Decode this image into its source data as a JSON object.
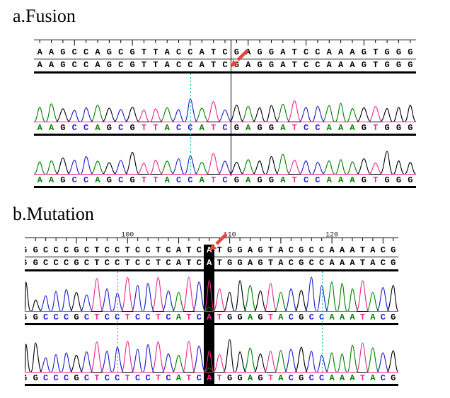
{
  "figure": {
    "panel_a_title": "a.Fusion",
    "panel_b_title": "b.Mutation"
  },
  "colors": {
    "bases": {
      "A": "#008000",
      "C": "#1c1ccd",
      "G": "#000000",
      "T": "#ed2891"
    },
    "dotted_line": "#00b2b2",
    "junction_line": "#000000",
    "highlight_bg": "#000000",
    "highlight_text": "#ffffff",
    "highlight_trace_letter": "#ed2891",
    "arrow": "#e8453c",
    "ruler": "#000000",
    "text_row_letters": "#000000"
  },
  "panel_a": {
    "title": "a.Fusion",
    "sequence": "AAGCCAGCGTTACCATCGAGGATCCAAAGTGGG",
    "junction_index": 17,
    "dotted_index": 13,
    "text_rows": 2,
    "traces": [
      {
        "heights": [
          0.62,
          0.78,
          0.55,
          0.48,
          0.6,
          0.72,
          0.58,
          0.52,
          0.63,
          0.5,
          0.55,
          0.6,
          0.52,
          1.0,
          0.58,
          0.88,
          0.5,
          0.72,
          0.66,
          0.6,
          0.7,
          0.76,
          0.92,
          0.62,
          0.66,
          0.7,
          0.8,
          0.56,
          0.6,
          0.66,
          0.56,
          0.62,
          0.72
        ]
      },
      {
        "heights": [
          0.52,
          0.56,
          0.7,
          0.6,
          0.76,
          0.55,
          0.48,
          0.58,
          0.95,
          0.45,
          0.6,
          0.55,
          0.66,
          0.8,
          0.5,
          0.9,
          0.55,
          0.5,
          0.62,
          0.56,
          0.76,
          0.86,
          0.6,
          0.56,
          0.5,
          0.56,
          0.62,
          0.52,
          0.66,
          0.46,
          1.0,
          0.56,
          0.5
        ]
      }
    ]
  },
  "panel_b": {
    "title": "b.Mutation",
    "clipped_first_char": "G",
    "sequence": "GCCCGCTCCTCCTCATCATGGAGTACGCCAAATACG",
    "highlight_index": 17,
    "highlight_base": "A",
    "dotted_indices": [
      8,
      28
    ],
    "ruler_labels": [
      {
        "text": "100",
        "index": 9
      },
      {
        "text": "110",
        "index": 19
      },
      {
        "text": "120",
        "index": 29
      }
    ],
    "text_rows": 2,
    "traces": [
      {
        "heights": [
          0.3,
          0.42,
          0.55,
          0.6,
          0.52,
          0.45,
          0.92,
          0.62,
          0.5,
          0.95,
          0.72,
          0.78,
          0.95,
          0.56,
          0.52,
          0.96,
          0.82,
          0.86,
          0.62,
          0.52,
          0.86,
          0.72,
          0.56,
          0.78,
          0.52,
          0.62,
          0.58,
          0.96,
          0.72,
          0.82,
          0.78,
          0.62,
          0.86,
          0.52,
          0.66,
          0.72
        ]
      },
      {
        "heights": [
          0.85,
          0.4,
          0.5,
          0.55,
          0.48,
          0.58,
          0.88,
          0.6,
          0.72,
          0.9,
          0.66,
          0.8,
          0.88,
          0.52,
          0.48,
          0.9,
          0.76,
          0.6,
          0.5,
          0.95,
          0.58,
          0.7,
          0.52,
          0.6,
          0.62,
          0.66,
          0.72,
          0.6,
          0.48,
          0.55,
          0.52,
          0.78,
          0.85,
          0.7,
          0.55,
          0.62
        ]
      }
    ]
  }
}
